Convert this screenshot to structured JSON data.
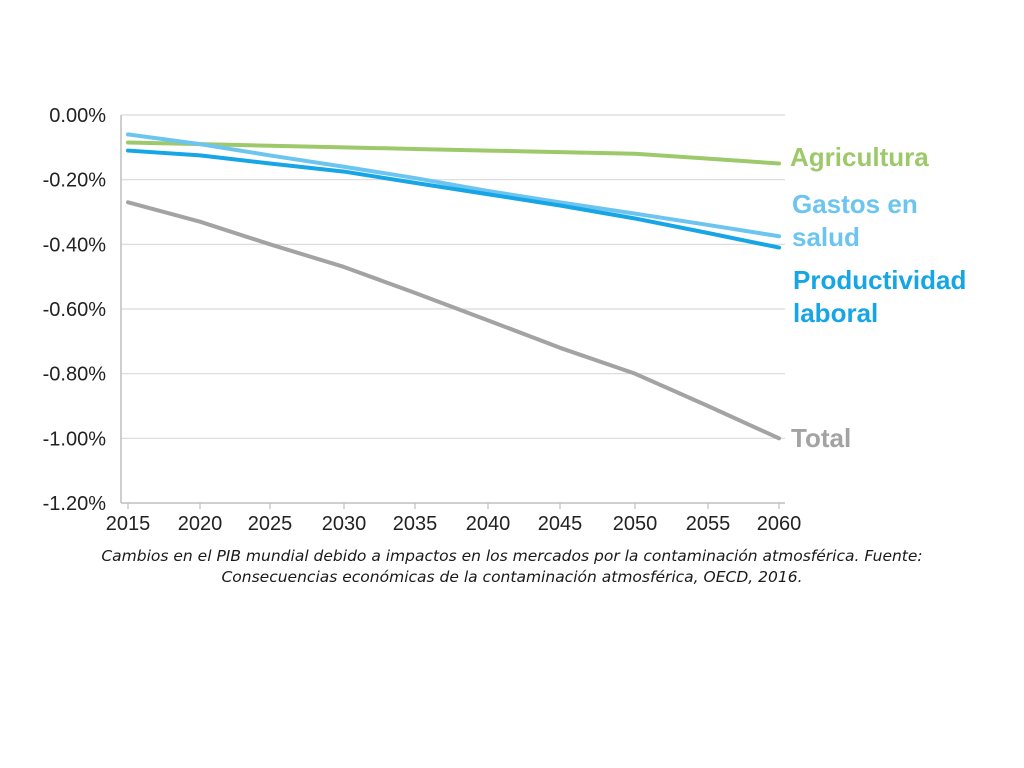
{
  "chart_data": {
    "type": "line",
    "x": [
      2015,
      2020,
      2025,
      2030,
      2035,
      2040,
      2045,
      2050,
      2055,
      2060
    ],
    "x_ticks": [
      "2015",
      "2020",
      "2025",
      "2030",
      "2035",
      "2040",
      "2045",
      "2050",
      "2055",
      "2060"
    ],
    "y_ticks": [
      "0.00%",
      "-0.20%",
      "-0.40%",
      "-0.60%",
      "-0.80%",
      "-1.00%",
      "-1.20%"
    ],
    "ylim": [
      -1.2,
      0
    ],
    "xlim": [
      2015,
      2060
    ],
    "grid": "horizontal",
    "series": [
      {
        "name": "Agricultura",
        "label_lines": [
          "Agricultura"
        ],
        "color": "#9dc96a",
        "x": [
          2015,
          2020,
          2025,
          2030,
          2035,
          2040,
          2045,
          2050,
          2055,
          2060
        ],
        "values": [
          -0.085,
          -0.09,
          -0.095,
          -0.1,
          -0.105,
          -0.11,
          -0.115,
          -0.12,
          -0.135,
          -0.15
        ]
      },
      {
        "name": "Gastos en salud",
        "label_lines": [
          "Gastos en",
          "salud"
        ],
        "color": "#6cc5f0",
        "x": [
          2015,
          2020,
          2025,
          2030,
          2035,
          2040,
          2045,
          2050,
          2055,
          2060
        ],
        "values": [
          -0.06,
          -0.09,
          -0.125,
          -0.16,
          -0.195,
          -0.235,
          -0.27,
          -0.305,
          -0.34,
          -0.375
        ]
      },
      {
        "name": "Productividad laboral",
        "label_lines": [
          "Productividad",
          "laboral"
        ],
        "color": "#16a5e5",
        "x": [
          2015,
          2020,
          2025,
          2030,
          2035,
          2040,
          2045,
          2050,
          2055,
          2060
        ],
        "values": [
          -0.11,
          -0.125,
          -0.15,
          -0.175,
          -0.21,
          -0.245,
          -0.28,
          -0.32,
          -0.365,
          -0.41
        ]
      },
      {
        "name": "Total",
        "label_lines": [
          "Total"
        ],
        "color": "#a3a3a3",
        "x": [
          2015,
          2020,
          2025,
          2030,
          2035,
          2040,
          2045,
          2050,
          2055,
          2060
        ],
        "values": [
          -0.27,
          -0.33,
          -0.4,
          -0.47,
          -0.55,
          -0.635,
          -0.72,
          -0.8,
          -0.9,
          -1.0
        ]
      }
    ]
  },
  "caption": {
    "line1": "Cambios en el PIB mundial debido a impactos en los mercados por la contaminación atmosférica. Fuente:",
    "line2": "Consecuencias económicas de la contaminación atmosférica, OECD, 2016."
  }
}
